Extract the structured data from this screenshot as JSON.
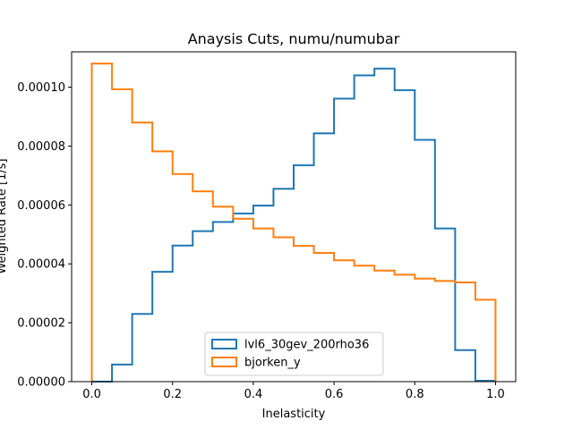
{
  "chart_data": {
    "type": "line",
    "drawstyle": "step-histogram",
    "title": "Anaysis Cuts, numu/numubar",
    "xlabel": "Inelasticity",
    "ylabel": "Weighted Rate [1/s]",
    "xlim": [
      -0.05,
      1.05
    ],
    "ylim": [
      0,
      0.000112
    ],
    "xticks": [
      0.0,
      0.2,
      0.4,
      0.6,
      0.8,
      1.0
    ],
    "xtick_labels": [
      "0.0",
      "0.2",
      "0.4",
      "0.6",
      "0.8",
      "1.0"
    ],
    "yticks": [
      0,
      2e-05,
      4e-05,
      6e-05,
      8e-05,
      0.0001
    ],
    "ytick_labels": [
      "0.00000",
      "0.00002",
      "0.00004",
      "0.00006",
      "0.00008",
      "0.00010"
    ],
    "bin_edges": [
      0.0,
      0.05,
      0.1,
      0.15,
      0.2,
      0.25,
      0.3,
      0.35,
      0.4,
      0.45,
      0.5,
      0.55,
      0.6,
      0.65,
      0.7,
      0.75,
      0.8,
      0.85,
      0.9,
      0.95,
      1.0
    ],
    "legend_position": "lower-center",
    "grid": false,
    "series": [
      {
        "name": "lvl6_30gev_200rho36",
        "color": "#1f77b4",
        "values": [
          0.0,
          5.8e-06,
          2.3e-05,
          3.73e-05,
          4.62e-05,
          5.11e-05,
          5.42e-05,
          5.71e-05,
          5.98e-05,
          6.55e-05,
          7.35e-05,
          8.43e-05,
          9.61e-05,
          0.000104,
          0.0001063,
          9.9e-05,
          8.21e-05,
          5.2e-05,
          1.07e-05,
          3e-07
        ]
      },
      {
        "name": "bjorken_y",
        "color": "#ff7f0e",
        "values": [
          0.000108,
          9.93e-05,
          8.8e-05,
          7.82e-05,
          7.05e-05,
          6.46e-05,
          5.94e-05,
          5.53e-05,
          5.2e-05,
          4.9e-05,
          4.61e-05,
          4.37e-05,
          4.12e-05,
          3.94e-05,
          3.77e-05,
          3.63e-05,
          3.5e-05,
          3.42e-05,
          3.37e-05,
          2.78e-05
        ]
      }
    ]
  }
}
